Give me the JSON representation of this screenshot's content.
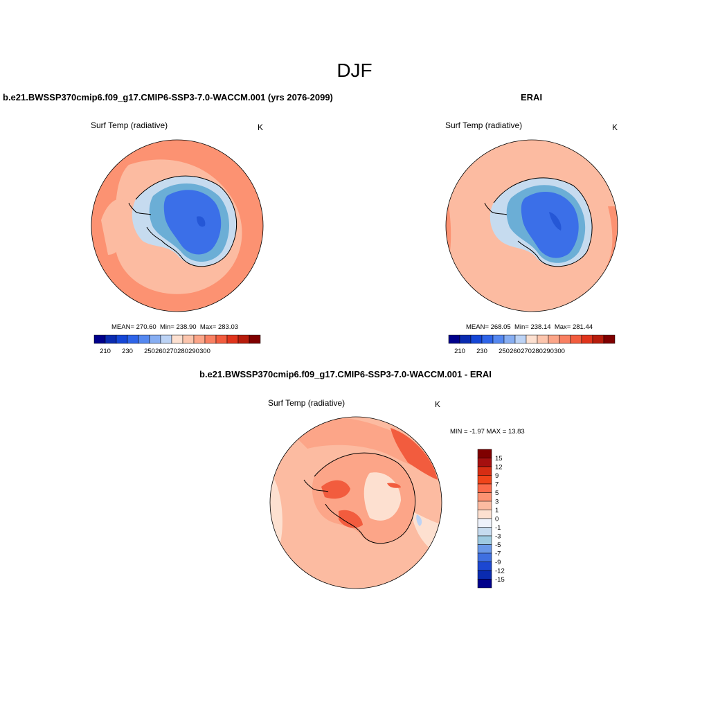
{
  "page": {
    "title": "DJF"
  },
  "panels": [
    {
      "case_title": "b.e21.BWSSP370cmip6.f09_g17.CMIP6-SSP3-7.0-WACCM.001 (yrs 2076-2099)",
      "variable": "Surf Temp (radiative)",
      "units": "K",
      "stats": {
        "mean": "270.60",
        "min": "238.90",
        "max": "283.03"
      },
      "stats_labels": {
        "mean": "MEAN=",
        "min": "Min=",
        "max": "Max="
      },
      "field": {
        "outer": "#fc9272",
        "ring": "#fcbba1",
        "ice_edge": "#c6dbef",
        "ice_mid": "#6baed6",
        "interior": "#3b6fe8",
        "interior_min": "#2557d6"
      }
    },
    {
      "case_title": "ERAI",
      "variable": "Surf Temp (radiative)",
      "units": "K",
      "stats": {
        "mean": "268.05",
        "min": "238.14",
        "max": "281.44"
      },
      "stats_labels": {
        "mean": "MEAN=",
        "min": "Min=",
        "max": "Max="
      },
      "field": {
        "outer": "#fcbba1",
        "ring": "#fcbba1",
        "ice_edge": "#c6dbef",
        "ice_mid": "#6baed6",
        "interior": "#3b6fe8",
        "interior_min": "#2557d6"
      }
    }
  ],
  "colorbar_abs": {
    "colors": [
      "#00008b",
      "#0a2bb0",
      "#1546d6",
      "#2e64e8",
      "#5588f0",
      "#87aef2",
      "#bcd3f5",
      "#fde0d0",
      "#fcc5ad",
      "#fca588",
      "#f98062",
      "#f25c3e",
      "#e0341c",
      "#b71c0c",
      "#7f0000"
    ],
    "tick_labels": [
      "210",
      "230",
      "250",
      "260",
      "270",
      "280",
      "290",
      "300"
    ]
  },
  "diff_panel": {
    "case_title": "b.e21.BWSSP370cmip6.f09_g17.CMIP6-SSP3-7.0-WACCM.001 - ERAI",
    "variable": "Surf Temp (radiative)",
    "units": "K",
    "stats_text": "MIN =  -1.97 MAX =  13.83",
    "field": {
      "ocean_light": "#fde0d0",
      "ocean_mid": "#fcbba1",
      "warm": "#fca588",
      "hot": "#f25c3e",
      "cold": "#bcd3f5"
    }
  },
  "colorbar_diff": {
    "colors": [
      "#7f0000",
      "#a50f0f",
      "#d62d13",
      "#f0441a",
      "#fb6a4a",
      "#fc9272",
      "#fcbba1",
      "#fde0d0",
      "#eef2fb",
      "#c6dbef",
      "#9ecae1",
      "#6a98e8",
      "#3f6fe0",
      "#1c47d1",
      "#0a2bb0",
      "#00008b"
    ],
    "tick_labels": [
      "15",
      "12",
      "9",
      "7",
      "5",
      "3",
      "1",
      "0",
      "-1",
      "-3",
      "-5",
      "-7",
      "-9",
      "-12",
      "-15"
    ]
  }
}
